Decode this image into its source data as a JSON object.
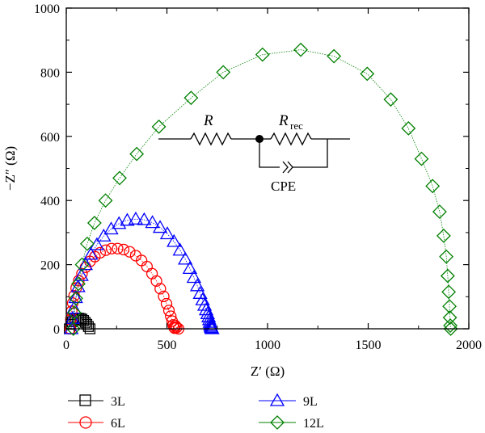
{
  "chart_data": {
    "type": "scatter",
    "xlabel": "Z′ (Ω)",
    "ylabel": "−Z″ (Ω)",
    "xlim": [
      0,
      2000
    ],
    "ylim": [
      0,
      1000
    ],
    "x_ticks": [
      0,
      500,
      1000,
      1500,
      2000
    ],
    "y_ticks": [
      0,
      200,
      400,
      600,
      800,
      1000
    ],
    "grid": false,
    "legend_position": "bottom",
    "series": [
      {
        "name": "3L",
        "color": "#000000",
        "marker": "square",
        "x": [
          15,
          22,
          30,
          38,
          46,
          54,
          62,
          70,
          78,
          86,
          94,
          102,
          110,
          118
        ],
        "y": [
          0,
          14,
          22,
          28,
          31,
          33,
          33,
          32,
          30,
          26,
          20,
          14,
          7,
          0
        ]
      },
      {
        "name": "6L",
        "color": "#ff0000",
        "marker": "circle",
        "x": [
          20,
          23,
          27,
          32,
          39,
          49,
          62,
          78,
          96,
          118,
          142,
          168,
          196,
          225,
          255,
          285,
          315,
          345,
          374,
          401,
          426,
          448,
          467,
          484,
          498,
          510,
          519,
          526,
          531,
          535,
          538,
          542,
          548,
          558
        ],
        "y": [
          0,
          30,
          55,
          80,
          103,
          127,
          150,
          172,
          192,
          210,
          225,
          237,
          245,
          250,
          250,
          247,
          240,
          228,
          213,
          194,
          172,
          149,
          125,
          101,
          78,
          57,
          39,
          24,
          12,
          5,
          2,
          10,
          4,
          0
        ]
      },
      {
        "name": "9L",
        "color": "#0000ff",
        "marker": "triangle",
        "x": [
          25,
          31,
          38,
          47,
          59,
          75,
          96,
          122,
          152,
          186,
          223,
          262,
          303,
          345,
          387,
          428,
          466,
          502,
          535,
          565,
          591,
          614,
          634,
          651,
          665,
          677,
          687,
          695,
          702,
          707,
          711,
          714,
          716,
          718,
          720,
          722,
          725
        ],
        "y": [
          0,
          32,
          64,
          97,
          131,
          166,
          200,
          232,
          262,
          289,
          311,
          328,
          338,
          342,
          340,
          331,
          316,
          296,
          272,
          245,
          217,
          188,
          160,
          134,
          110,
          90,
          73,
          59,
          47,
          37,
          28,
          20,
          13,
          8,
          4,
          1,
          0
        ]
      },
      {
        "name": "12L",
        "color": "#008000",
        "marker": "diamond",
        "x": [
          35,
          40,
          48,
          60,
          78,
          104,
          140,
          195,
          265,
          350,
          460,
          620,
          780,
          975,
          1165,
          1330,
          1495,
          1612,
          1700,
          1765,
          1820,
          1855,
          1875,
          1888,
          1895,
          1900,
          1904,
          1906,
          1908,
          1910
        ],
        "y": [
          0,
          50,
          95,
          140,
          200,
          265,
          330,
          400,
          470,
          545,
          630,
          720,
          800,
          855,
          870,
          850,
          795,
          715,
          625,
          530,
          445,
          365,
          290,
          225,
          165,
          115,
          70,
          35,
          10,
          0
        ]
      }
    ],
    "annotation": {
      "labels": [
        "R",
        "R",
        "rec",
        "CPE"
      ]
    }
  }
}
